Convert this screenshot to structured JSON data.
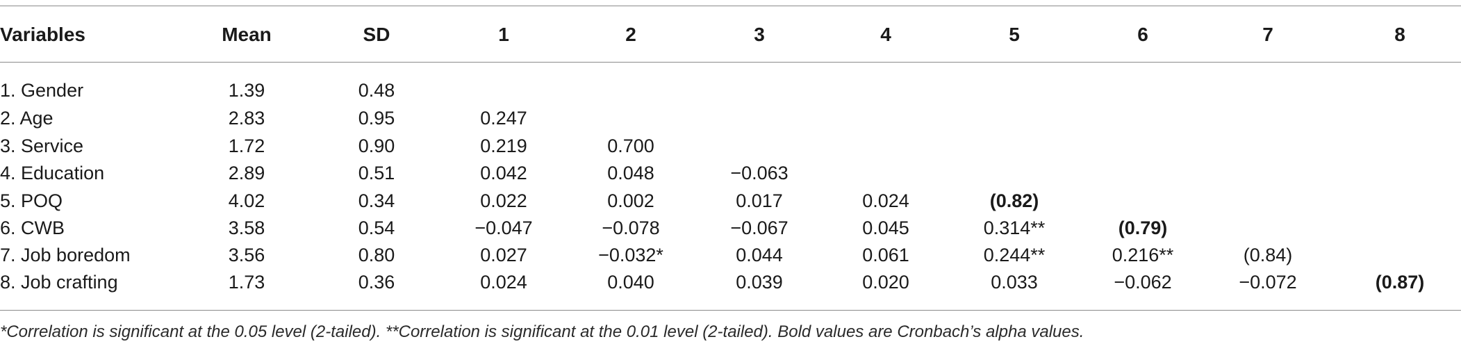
{
  "table": {
    "headers": [
      "Variables",
      "Mean",
      "SD",
      "1",
      "2",
      "3",
      "4",
      "5",
      "6",
      "7",
      "8"
    ],
    "rows": [
      {
        "variable": "1. Gender",
        "mean": "1.39",
        "sd": "0.48",
        "c1": "",
        "c2": "",
        "c3": "",
        "c4": "",
        "c5": "",
        "c6": "",
        "c7": "",
        "c8": ""
      },
      {
        "variable": "2. Age",
        "mean": "2.83",
        "sd": "0.95",
        "c1": "0.247",
        "c2": "",
        "c3": "",
        "c4": "",
        "c5": "",
        "c6": "",
        "c7": "",
        "c8": ""
      },
      {
        "variable": "3. Service",
        "mean": "1.72",
        "sd": "0.90",
        "c1": "0.219",
        "c2": "0.700",
        "c3": "",
        "c4": "",
        "c5": "",
        "c6": "",
        "c7": "",
        "c8": ""
      },
      {
        "variable": "4. Education",
        "mean": "2.89",
        "sd": "0.51",
        "c1": "0.042",
        "c2": "0.048",
        "c3": "−0.063",
        "c4": "",
        "c5": "",
        "c6": "",
        "c7": "",
        "c8": ""
      },
      {
        "variable": "5. POQ",
        "mean": "4.02",
        "sd": "0.34",
        "c1": "0.022",
        "c2": "0.002",
        "c3": "0.017",
        "c4": "0.024",
        "c5": "(0.82)",
        "c6": "",
        "c7": "",
        "c8": ""
      },
      {
        "variable": "6. CWB",
        "mean": "3.58",
        "sd": "0.54",
        "c1": "−0.047",
        "c2": "−0.078",
        "c3": "−0.067",
        "c4": "0.045",
        "c5": "0.314**",
        "c6": "(0.79)",
        "c7": "",
        "c8": ""
      },
      {
        "variable": "7. Job boredom",
        "mean": "3.56",
        "sd": "0.80",
        "c1": "0.027",
        "c2": "−0.032*",
        "c3": "0.044",
        "c4": "0.061",
        "c5": "0.244**",
        "c6": "0.216**",
        "c7": "(0.84)",
        "c8": ""
      },
      {
        "variable": "8. Job crafting",
        "mean": "1.73",
        "sd": "0.36",
        "c1": "0.024",
        "c2": "0.040",
        "c3": "0.039",
        "c4": "0.020",
        "c5": "0.033",
        "c6": "−0.062",
        "c7": "−0.072",
        "c8": "(0.87)"
      }
    ]
  },
  "footnote": "*Correlation is significant at the 0.05 level (2-tailed). **Correlation is significant at the 0.01 level (2-tailed). Bold values are Cronbach’s alpha values."
}
